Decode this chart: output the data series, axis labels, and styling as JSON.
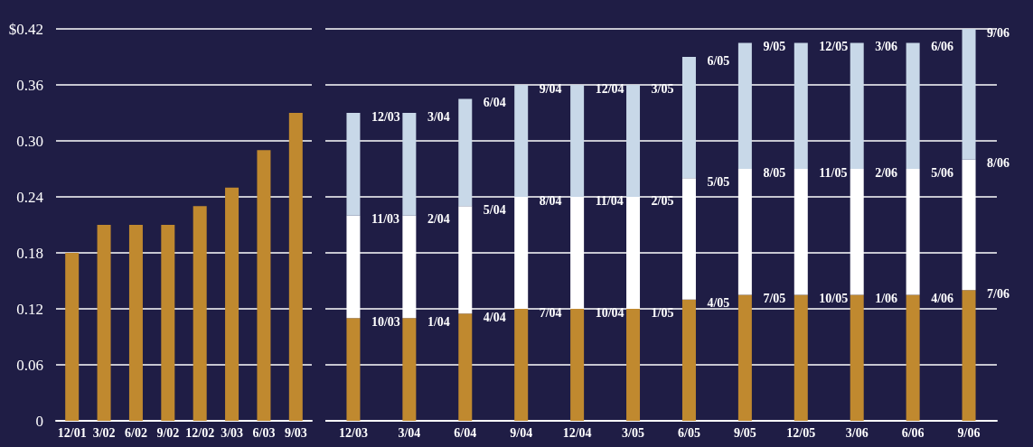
{
  "chart_data": [
    {
      "type": "bar",
      "categories": [
        "12/01",
        "3/02",
        "6/02",
        "9/02",
        "12/02",
        "3/03",
        "6/03",
        "9/03"
      ],
      "values": [
        0.18,
        0.21,
        0.21,
        0.21,
        0.23,
        0.25,
        0.29,
        0.33
      ],
      "color": "#c0892f",
      "ylim": [
        0,
        0.42
      ],
      "yticks": [
        0,
        0.06,
        0.12,
        0.18,
        0.24,
        {
          "value": 0.3,
          "label": "0.30"
        },
        0.36,
        {
          "value": 0.42,
          "label": "$0.42"
        }
      ],
      "grid": "y"
    },
    {
      "type": "bar",
      "stacked": true,
      "categories": [
        "12/03",
        "3/04",
        "6/04",
        "9/04",
        "12/04",
        "3/05",
        "6/05",
        "9/05",
        "12/05",
        "3/06",
        "6/06",
        "9/06"
      ],
      "series": [
        {
          "color": "#c0892f",
          "values": [
            0.11,
            0.11,
            0.115,
            0.12,
            0.12,
            0.12,
            0.13,
            0.135,
            0.135,
            0.135,
            0.135,
            0.14
          ]
        },
        {
          "color": "#ffffff",
          "values": [
            0.11,
            0.11,
            0.115,
            0.12,
            0.12,
            0.12,
            0.13,
            0.135,
            0.135,
            0.135,
            0.135,
            0.14
          ]
        },
        {
          "color": "#c8d8e8",
          "values": [
            0.11,
            0.11,
            0.115,
            0.12,
            0.12,
            0.12,
            0.13,
            0.135,
            0.135,
            0.135,
            0.135,
            0.14
          ]
        }
      ],
      "annotations": [
        {
          "text": "10/03",
          "x": "12/03",
          "y": 0.11
        },
        {
          "text": "11/03",
          "x": "12/03",
          "y": 0.22
        },
        {
          "text": "12/03",
          "x": "12/03",
          "y": 0.33
        },
        {
          "text": "1/04",
          "x": "3/04",
          "y": 0.11
        },
        {
          "text": "2/04",
          "x": "3/04",
          "y": 0.22
        },
        {
          "text": "3/04",
          "x": "3/04",
          "y": 0.33
        },
        {
          "text": "4/04",
          "x": "6/04",
          "y": 0.115
        },
        {
          "text": "5/04",
          "x": "6/04",
          "y": 0.23
        },
        {
          "text": "6/04",
          "x": "6/04",
          "y": 0.345
        },
        {
          "text": "7/04",
          "x": "9/04",
          "y": 0.12
        },
        {
          "text": "8/04",
          "x": "9/04",
          "y": 0.24
        },
        {
          "text": "9/04",
          "x": "9/04",
          "y": 0.36
        },
        {
          "text": "10/04",
          "x": "12/04",
          "y": 0.12
        },
        {
          "text": "11/04",
          "x": "12/04",
          "y": 0.24
        },
        {
          "text": "12/04",
          "x": "12/04",
          "y": 0.36
        },
        {
          "text": "1/05",
          "x": "3/05",
          "y": 0.12
        },
        {
          "text": "2/05",
          "x": "3/05",
          "y": 0.24
        },
        {
          "text": "3/05",
          "x": "3/05",
          "y": 0.36
        },
        {
          "text": "4/05",
          "x": "6/05",
          "y": 0.13
        },
        {
          "text": "5/05",
          "x": "6/05",
          "y": 0.26
        },
        {
          "text": "6/05",
          "x": "6/05",
          "y": 0.39
        },
        {
          "text": "7/05",
          "x": "9/05",
          "y": 0.135
        },
        {
          "text": "8/05",
          "x": "9/05",
          "y": 0.27
        },
        {
          "text": "9/05",
          "x": "9/05",
          "y": 0.405
        },
        {
          "text": "10/05",
          "x": "12/05",
          "y": 0.135
        },
        {
          "text": "11/05",
          "x": "12/05",
          "y": 0.27
        },
        {
          "text": "12/05",
          "x": "12/05",
          "y": 0.405
        },
        {
          "text": "1/06",
          "x": "3/06",
          "y": 0.135
        },
        {
          "text": "2/06",
          "x": "3/06",
          "y": 0.27
        },
        {
          "text": "3/06",
          "x": "3/06",
          "y": 0.405
        },
        {
          "text": "4/06",
          "x": "6/06",
          "y": 0.135
        },
        {
          "text": "5/06",
          "x": "6/06",
          "y": 0.27
        },
        {
          "text": "6/06",
          "x": "6/06",
          "y": 0.405
        },
        {
          "text": "7/06",
          "x": "9/06",
          "y": 0.14
        },
        {
          "text": "8/06",
          "x": "9/06",
          "y": 0.28
        },
        {
          "text": "9/06",
          "x": "9/06",
          "y": 0.42
        }
      ],
      "ylim": [
        0,
        0.42
      ],
      "yticks": [
        0,
        0.06,
        0.12,
        0.18,
        0.24,
        0.3,
        0.36,
        0.42
      ],
      "grid": "y",
      "tick_labels": "x"
    }
  ]
}
